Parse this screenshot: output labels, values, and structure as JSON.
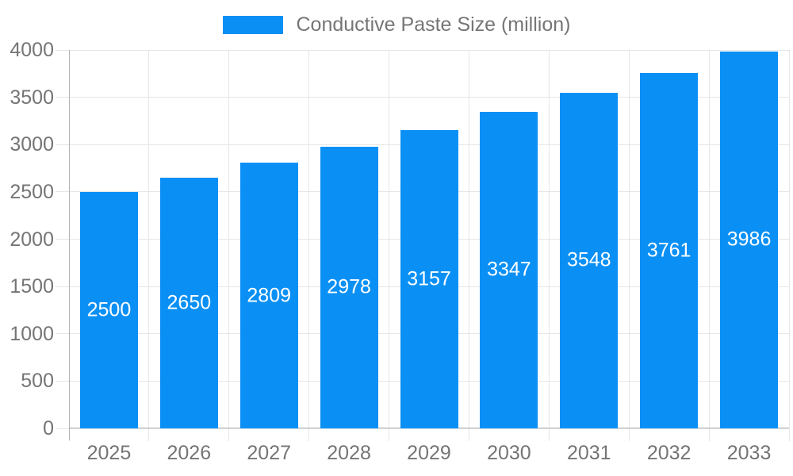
{
  "legend": {
    "label": "Conductive Paste Size (million)"
  },
  "chart_data": {
    "type": "bar",
    "title": "Conductive Paste Size (million)",
    "series_name": "Conductive Paste Size (million)",
    "legend_position": "top",
    "categories": [
      "2025",
      "2026",
      "2027",
      "2028",
      "2029",
      "2030",
      "2031",
      "2032",
      "2033"
    ],
    "values": [
      2500,
      2650,
      2809,
      2978,
      3157,
      3347,
      3548,
      3761,
      3986
    ],
    "xlabel": "",
    "ylabel": "",
    "ylim": [
      0,
      4000
    ],
    "yticks": [
      0,
      500,
      1000,
      1500,
      2000,
      2500,
      3000,
      3500,
      4000
    ],
    "grid": {
      "horizontal": true,
      "vertical": true
    },
    "value_label_placement": "inside-center",
    "colors": {
      "bar": "#0a90f5",
      "value_label": "#ffffff",
      "axis_label": "#757575",
      "legend_label": "#757575",
      "grid_line": "#e6e6e6",
      "axis_line": "#b3b3b3",
      "background": "#ffffff"
    }
  }
}
